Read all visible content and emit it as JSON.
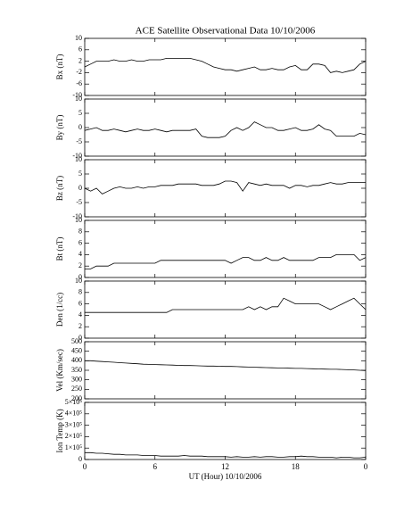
{
  "chart_data": [
    {
      "type": "line",
      "title": "ACE Satellite Observational Data   10/10/2006",
      "ylabel": "Bx (nT)",
      "xlim": [
        0,
        24
      ],
      "x": [
        0,
        0.5,
        1,
        1.5,
        2,
        2.5,
        3,
        3.5,
        4,
        4.5,
        5,
        5.5,
        6,
        6.5,
        7,
        7.5,
        8,
        8.5,
        9,
        9.5,
        10,
        10.5,
        11,
        11.5,
        12,
        12.5,
        13,
        13.5,
        14,
        14.5,
        15,
        15.5,
        16,
        16.5,
        17,
        17.5,
        18,
        18.5,
        19,
        19.5,
        20,
        20.5,
        21,
        21.5,
        22,
        22.5,
        23,
        23.5,
        24
      ],
      "series": [
        {
          "name": "Bx",
          "color": "#000000",
          "values": [
            0,
            1,
            2,
            2,
            2,
            2.5,
            2,
            2,
            2.5,
            2,
            2,
            2.5,
            2.5,
            2.5,
            3,
            3,
            3,
            3,
            3,
            2.5,
            2,
            1,
            0,
            -0.5,
            -1,
            -1,
            -1.5,
            -1,
            -0.5,
            0,
            -1,
            -1,
            -0.5,
            -1,
            -1,
            0,
            0.5,
            -1,
            -1,
            1,
            1,
            0.5,
            -2,
            -1.5,
            -2,
            -1.5,
            -1,
            1,
            2
          ]
        }
      ],
      "ylim": [
        -10,
        10
      ],
      "yticks": [
        -10,
        -6,
        -2,
        2,
        6,
        10
      ]
    },
    {
      "type": "line",
      "ylabel": "By (nT)",
      "xlim": [
        0,
        24
      ],
      "x": [
        0,
        0.5,
        1,
        1.5,
        2,
        2.5,
        3,
        3.5,
        4,
        4.5,
        5,
        5.5,
        6,
        6.5,
        7,
        7.5,
        8,
        8.5,
        9,
        9.5,
        10,
        10.5,
        11,
        11.5,
        12,
        12.5,
        13,
        13.5,
        14,
        14.5,
        15,
        15.5,
        16,
        16.5,
        17,
        17.5,
        18,
        18.5,
        19,
        19.5,
        20,
        20.5,
        21,
        21.5,
        22,
        22.5,
        23,
        23.5,
        24
      ],
      "series": [
        {
          "name": "By",
          "color": "#000000",
          "values": [
            -1,
            -0.5,
            0,
            -1,
            -1,
            -0.5,
            -1,
            -1.5,
            -1,
            -0.5,
            -1,
            -1,
            -0.5,
            -1,
            -1.5,
            -1,
            -1,
            -1,
            -1,
            -0.5,
            -3,
            -3.5,
            -3.5,
            -3.5,
            -3,
            -1,
            0,
            -1,
            0,
            2,
            1,
            0,
            0,
            -1,
            -1,
            -0.5,
            0,
            -1,
            -1,
            -0.5,
            1,
            -0.5,
            -1,
            -3,
            -3,
            -3,
            -3,
            -2,
            -2.5
          ]
        }
      ],
      "ylim": [
        -10,
        10
      ],
      "yticks": [
        -10,
        -5,
        0,
        5,
        10
      ]
    },
    {
      "type": "line",
      "ylabel": "Bz (nT)",
      "xlim": [
        0,
        24
      ],
      "x": [
        0,
        0.5,
        1,
        1.5,
        2,
        2.5,
        3,
        3.5,
        4,
        4.5,
        5,
        5.5,
        6,
        6.5,
        7,
        7.5,
        8,
        8.5,
        9,
        9.5,
        10,
        10.5,
        11,
        11.5,
        12,
        12.5,
        13,
        13.5,
        14,
        14.5,
        15,
        15.5,
        16,
        16.5,
        17,
        17.5,
        18,
        18.5,
        19,
        19.5,
        20,
        20.5,
        21,
        21.5,
        22,
        22.5,
        23,
        23.5,
        24
      ],
      "series": [
        {
          "name": "Bz",
          "color": "#000000",
          "values": [
            0,
            -1,
            0,
            -2,
            -1,
            0,
            0.5,
            0,
            0,
            0.5,
            0,
            0.5,
            0.5,
            1,
            1,
            1,
            1.5,
            1.5,
            1.5,
            1.5,
            1,
            1,
            1,
            1.5,
            2.5,
            2.5,
            2,
            -1,
            2,
            1.5,
            1,
            1.5,
            1,
            1,
            1,
            0,
            1,
            1,
            0.5,
            1,
            1,
            1.5,
            2,
            1.5,
            1.5,
            2,
            2,
            2,
            2
          ]
        }
      ],
      "ylim": [
        -10,
        10
      ],
      "yticks": [
        -10,
        -5,
        0,
        5,
        10
      ]
    },
    {
      "type": "line",
      "ylabel": "Bt (nT)",
      "xlim": [
        0,
        24
      ],
      "x": [
        0,
        0.5,
        1,
        1.5,
        2,
        2.5,
        3,
        3.5,
        4,
        4.5,
        5,
        5.5,
        6,
        6.5,
        7,
        7.5,
        8,
        8.5,
        9,
        9.5,
        10,
        10.5,
        11,
        11.5,
        12,
        12.5,
        13,
        13.5,
        14,
        14.5,
        15,
        15.5,
        16,
        16.5,
        17,
        17.5,
        18,
        18.5,
        19,
        19.5,
        20,
        20.5,
        21,
        21.5,
        22,
        22.5,
        23,
        23.5,
        24
      ],
      "series": [
        {
          "name": "Bt",
          "color": "#000000",
          "values": [
            1.5,
            1.5,
            2,
            2,
            2,
            2.5,
            2.5,
            2.5,
            2.5,
            2.5,
            2.5,
            2.5,
            2.5,
            3,
            3,
            3,
            3,
            3,
            3,
            3,
            3,
            3,
            3,
            3,
            3,
            2.5,
            3,
            3.5,
            3.5,
            3,
            3,
            3.5,
            3,
            3,
            3.5,
            3,
            3,
            3,
            3,
            3,
            3.5,
            3.5,
            3.5,
            4,
            4,
            4,
            4,
            3,
            3.5
          ]
        }
      ],
      "ylim": [
        0,
        10
      ],
      "yticks": [
        0,
        2,
        4,
        6,
        8,
        10
      ]
    },
    {
      "type": "line",
      "ylabel": "Den (1/cc)",
      "xlim": [
        0,
        24
      ],
      "x": [
        0,
        0.5,
        1,
        1.5,
        2,
        2.5,
        3,
        3.5,
        4,
        4.5,
        5,
        5.5,
        6,
        6.5,
        7,
        7.5,
        8,
        8.5,
        9,
        9.5,
        10,
        10.5,
        11,
        11.5,
        12,
        12.5,
        13,
        13.5,
        14,
        14.5,
        15,
        15.5,
        16,
        16.5,
        17,
        17.5,
        18,
        18.5,
        19,
        19.5,
        20,
        20.5,
        21,
        21.5,
        22,
        22.5,
        23,
        23.5,
        24
      ],
      "series": [
        {
          "name": "Den",
          "color": "#000000",
          "values": [
            4.5,
            4.5,
            4.5,
            4.5,
            4.5,
            4.5,
            4.5,
            4.5,
            4.5,
            4.5,
            4.5,
            4.5,
            4.5,
            4.5,
            4.5,
            5,
            5,
            5,
            5,
            5,
            5,
            5,
            5,
            5,
            5,
            5,
            5,
            5,
            5.5,
            5,
            5.5,
            5,
            5.5,
            5.5,
            7,
            6.5,
            6,
            6,
            6,
            6,
            6,
            5.5,
            5,
            5.5,
            6,
            6.5,
            7,
            6,
            5
          ]
        }
      ],
      "ylim": [
        0,
        10
      ],
      "yticks": [
        0,
        2,
        4,
        6,
        8,
        10
      ]
    },
    {
      "type": "line",
      "ylabel": "Vel (Km/sec)",
      "xlim": [
        0,
        24
      ],
      "x": [
        0,
        0.5,
        1,
        1.5,
        2,
        2.5,
        3,
        3.5,
        4,
        4.5,
        5,
        5.5,
        6,
        6.5,
        7,
        7.5,
        8,
        8.5,
        9,
        9.5,
        10,
        10.5,
        11,
        11.5,
        12,
        12.5,
        13,
        13.5,
        14,
        14.5,
        15,
        15.5,
        16,
        16.5,
        17,
        17.5,
        18,
        18.5,
        19,
        19.5,
        20,
        20.5,
        21,
        21.5,
        22,
        22.5,
        23,
        23.5,
        24
      ],
      "series": [
        {
          "name": "Vel",
          "color": "#000000",
          "values": [
            400,
            400,
            398,
            396,
            394,
            392,
            390,
            388,
            386,
            384,
            382,
            381,
            380,
            379,
            378,
            377,
            376,
            375,
            375,
            374,
            373,
            372,
            372,
            371,
            370,
            370,
            369,
            368,
            367,
            366,
            365,
            364,
            363,
            362,
            362,
            361,
            360,
            360,
            359,
            358,
            357,
            356,
            355,
            355,
            354,
            353,
            352,
            350,
            348
          ]
        }
      ],
      "ylim": [
        200,
        500
      ],
      "yticks": [
        200,
        250,
        300,
        350,
        400,
        450,
        500
      ]
    },
    {
      "type": "line",
      "ylabel": "Ion Temp (K)",
      "xlabel": "UT (Hour)  10/10/2006",
      "xlim": [
        0,
        24
      ],
      "x": [
        0,
        0.5,
        1,
        1.5,
        2,
        2.5,
        3,
        3.5,
        4,
        4.5,
        5,
        5.5,
        6,
        6.5,
        7,
        7.5,
        8,
        8.5,
        9,
        9.5,
        10,
        10.5,
        11,
        11.5,
        12,
        12.5,
        13,
        13.5,
        14,
        14.5,
        15,
        15.5,
        16,
        16.5,
        17,
        17.5,
        18,
        18.5,
        19,
        19.5,
        20,
        20.5,
        21,
        21.5,
        22,
        22.5,
        23,
        23.5,
        24
      ],
      "xticks": [
        0,
        6,
        12,
        18,
        {
          "value": 24,
          "label": "0"
        }
      ],
      "series": [
        {
          "name": "Ion Temp",
          "color": "#000000",
          "values": [
            60000,
            60000,
            55000,
            55000,
            50000,
            45000,
            45000,
            40000,
            40000,
            40000,
            35000,
            35000,
            35000,
            30000,
            30000,
            30000,
            30000,
            35000,
            30000,
            30000,
            30000,
            25000,
            25000,
            25000,
            25000,
            20000,
            25000,
            20000,
            20000,
            25000,
            20000,
            25000,
            25000,
            20000,
            20000,
            25000,
            25000,
            30000,
            25000,
            25000,
            20000,
            20000,
            20000,
            15000,
            20000,
            20000,
            15000,
            15000,
            20000
          ]
        }
      ],
      "ylim": [
        0,
        500000
      ],
      "yticks": [
        0,
        {
          "value": 100000,
          "label": "1×10⁵"
        },
        {
          "value": 200000,
          "label": "2×10⁵"
        },
        {
          "value": 300000,
          "label": "3×10⁵"
        },
        {
          "value": 400000,
          "label": "4×10⁵"
        },
        {
          "value": 500000,
          "label": "5×10⁵"
        }
      ]
    }
  ]
}
